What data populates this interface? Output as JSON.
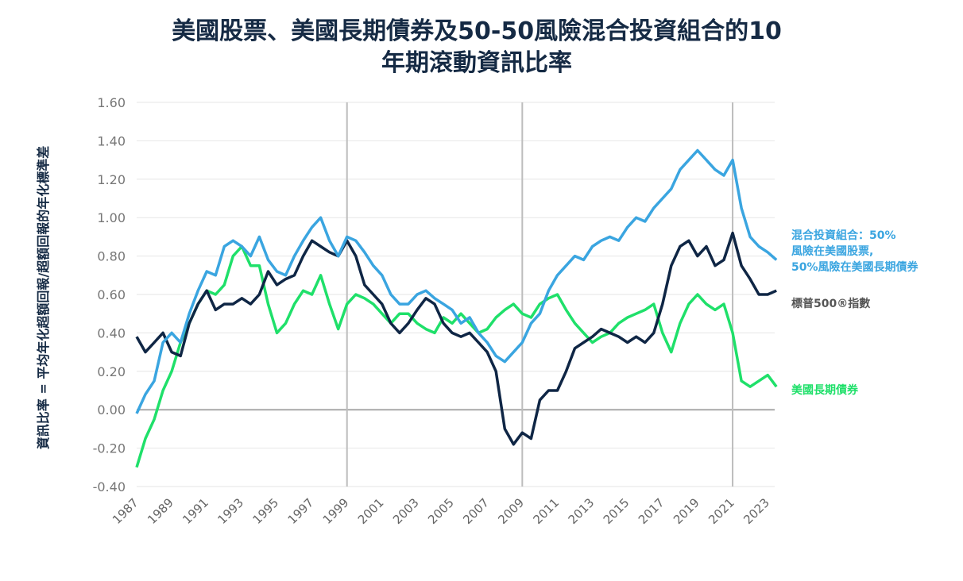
{
  "chart_data": {
    "type": "line",
    "title_lines": [
      "美國股票、美國長期債券及50-50風險混合投資組合的10",
      "年期滾動資訊比率"
    ],
    "ylabel": "資訊比率 = 平均年化超額回報/超額回報的年化標準差",
    "xlabel": "",
    "ylim": [
      -0.4,
      1.6
    ],
    "xlim": [
      1987,
      2023.4
    ],
    "yticks": [
      "1.60",
      "1.40",
      "1.20",
      "1.00",
      "0.80",
      "0.60",
      "0.40",
      "0.20",
      "0.00",
      "-0.20",
      "-0.40"
    ],
    "xticks": [
      "1987",
      "1989",
      "1991",
      "1993",
      "1995",
      "1997",
      "1999",
      "2001",
      "2003",
      "2005",
      "2007",
      "2009",
      "2011",
      "2013",
      "2015",
      "2017",
      "2019",
      "2021",
      "2023"
    ],
    "vertical_markers": [
      1999,
      2009,
      2021
    ],
    "grid": true,
    "legend_placement": "right",
    "x_start": 1987,
    "x_step": 0.5,
    "series": [
      {
        "name": "混合投資組合：50%\n風險在美國股票,\n50%風險在美國長期債券",
        "color": "#3aa5e0",
        "values": [
          -0.02,
          0.08,
          0.15,
          0.35,
          0.4,
          0.35,
          0.5,
          0.62,
          0.72,
          0.7,
          0.85,
          0.88,
          0.85,
          0.8,
          0.9,
          0.78,
          0.72,
          0.7,
          0.8,
          0.88,
          0.95,
          1.0,
          0.88,
          0.8,
          0.9,
          0.88,
          0.82,
          0.75,
          0.7,
          0.6,
          0.55,
          0.55,
          0.6,
          0.62,
          0.58,
          0.55,
          0.52,
          0.45,
          0.48,
          0.4,
          0.35,
          0.28,
          0.25,
          0.3,
          0.35,
          0.45,
          0.5,
          0.62,
          0.7,
          0.75,
          0.8,
          0.78,
          0.85,
          0.88,
          0.9,
          0.88,
          0.95,
          1.0,
          0.98,
          1.05,
          1.1,
          1.15,
          1.25,
          1.3,
          1.35,
          1.3,
          1.25,
          1.22,
          1.3,
          1.05,
          0.9,
          0.85,
          0.82,
          0.78
        ]
      },
      {
        "name": "標普500®指數",
        "color": "#0f2645",
        "values": [
          0.38,
          0.3,
          0.35,
          0.4,
          0.3,
          0.28,
          0.45,
          0.55,
          0.62,
          0.52,
          0.55,
          0.55,
          0.58,
          0.55,
          0.6,
          0.72,
          0.65,
          0.68,
          0.7,
          0.8,
          0.88,
          0.85,
          0.82,
          0.8,
          0.88,
          0.8,
          0.65,
          0.6,
          0.55,
          0.45,
          0.4,
          0.45,
          0.52,
          0.58,
          0.55,
          0.45,
          0.4,
          0.38,
          0.4,
          0.35,
          0.3,
          0.2,
          -0.1,
          -0.18,
          -0.12,
          -0.15,
          0.05,
          0.1,
          0.1,
          0.2,
          0.32,
          0.35,
          0.38,
          0.42,
          0.4,
          0.38,
          0.35,
          0.38,
          0.35,
          0.4,
          0.55,
          0.75,
          0.85,
          0.88,
          0.8,
          0.85,
          0.75,
          0.78,
          0.92,
          0.75,
          0.68,
          0.6,
          0.6,
          0.62
        ]
      },
      {
        "name": "美國長期債券",
        "color": "#1fe06a",
        "values": [
          -0.3,
          -0.15,
          -0.05,
          0.1,
          0.2,
          0.35,
          0.45,
          0.55,
          0.62,
          0.6,
          0.65,
          0.8,
          0.85,
          0.75,
          0.75,
          0.55,
          0.4,
          0.45,
          0.55,
          0.62,
          0.6,
          0.7,
          0.55,
          0.42,
          0.55,
          0.6,
          0.58,
          0.55,
          0.5,
          0.45,
          0.5,
          0.5,
          0.45,
          0.42,
          0.4,
          0.48,
          0.45,
          0.5,
          0.45,
          0.4,
          0.42,
          0.48,
          0.52,
          0.55,
          0.5,
          0.48,
          0.55,
          0.58,
          0.6,
          0.52,
          0.45,
          0.4,
          0.35,
          0.38,
          0.4,
          0.45,
          0.48,
          0.5,
          0.52,
          0.55,
          0.4,
          0.3,
          0.45,
          0.55,
          0.6,
          0.55,
          0.52,
          0.55,
          0.4,
          0.15,
          0.12,
          0.15,
          0.18,
          0.12
        ]
      }
    ],
    "legend": [
      {
        "lines": [
          "混合投資組合：50%",
          "風險在美國股票,",
          "50%風險在美國長期債券"
        ],
        "color": "#3aa5e0"
      },
      {
        "lines": [
          "標普500®指數"
        ],
        "color": "#555555"
      },
      {
        "lines": [
          "美國長期債券"
        ],
        "color": "#1fe06a"
      }
    ]
  }
}
